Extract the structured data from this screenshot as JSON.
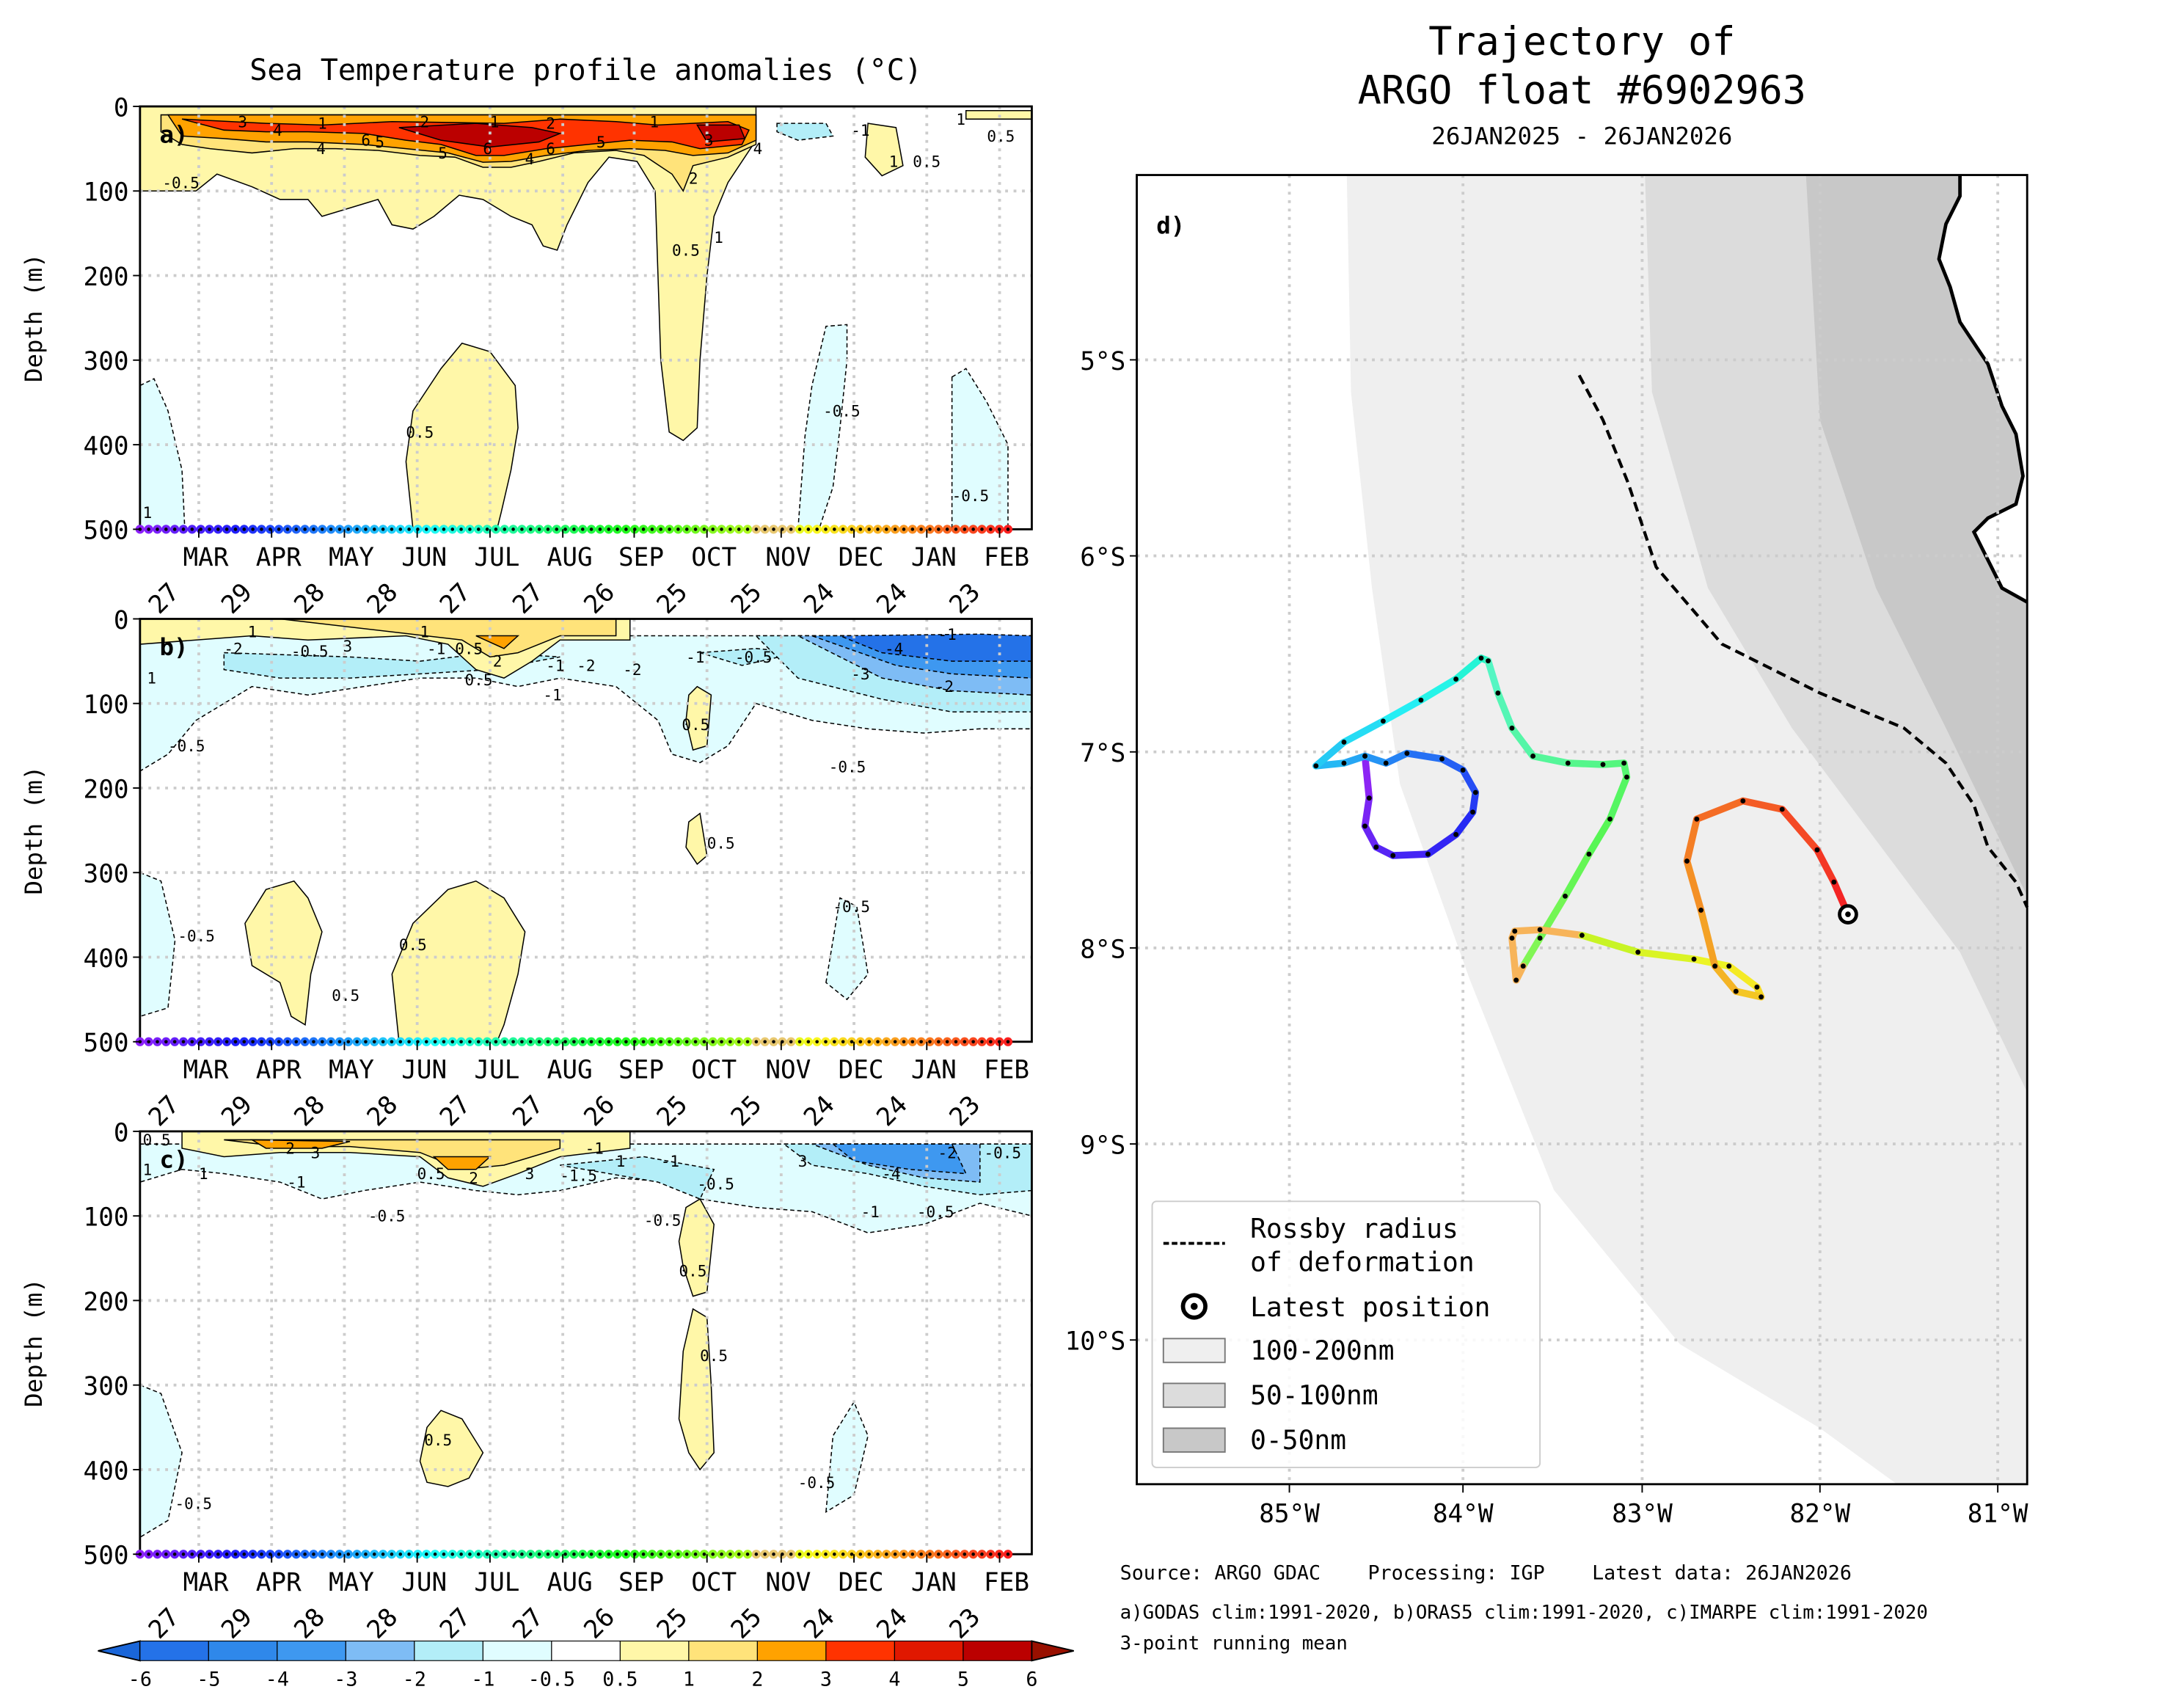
{
  "left_title": "Sea Temperature profile anomalies (°C)",
  "depth_label": "Depth (m)",
  "depth_ticks": [
    "0",
    "100",
    "200",
    "300",
    "400",
    "500"
  ],
  "months": [
    "MAR",
    "APR",
    "MAY",
    "JUN",
    "JUL",
    "AUG",
    "SEP",
    "OCT",
    "NOV",
    "DEC",
    "JAN",
    "FEB"
  ],
  "days": [
    "27",
    "29",
    "28",
    "28",
    "27",
    "27",
    "26",
    "25",
    "25",
    "24",
    "24",
    "23"
  ],
  "panels": [
    {
      "tag": "a)",
      "contour_labels": [
        "3",
        "4",
        "1",
        "4",
        "6",
        "5",
        "2",
        "5",
        "6",
        "1",
        "2",
        "6",
        "4",
        "1",
        "5",
        "3",
        "4",
        "2",
        "1",
        "0.5",
        "-1",
        "1",
        "0.5",
        "-0.5",
        "0.5",
        "-0.5",
        "1",
        "-0.5",
        "1",
        "0.5"
      ]
    },
    {
      "tag": "b)",
      "contour_labels": [
        "1",
        "-2",
        "-0.5",
        "3",
        "1",
        "-1",
        "0.5",
        "2",
        "-1",
        "-2",
        "-2",
        "-1",
        "-0.5",
        "-4",
        "-3",
        "-2",
        "-1",
        "1",
        "-0.5",
        "0.5",
        "0.5",
        "-0.5",
        "0.5",
        "-0.5",
        "0.5",
        "0.5",
        "-0.5",
        "-1"
      ]
    },
    {
      "tag": "c)",
      "contour_labels": [
        "0.5",
        "1",
        "1",
        "2",
        "3",
        "-1",
        "0.5",
        "2",
        "3",
        "-1",
        "-1.5",
        "1",
        "-1",
        "-0.5",
        "3",
        "-4",
        "-2",
        "-0.5",
        "-1",
        "-0.5",
        "-0.5",
        "-0.5",
        "0.5",
        "0.5",
        "0.5",
        "-0.5",
        "-0.5"
      ]
    }
  ],
  "colorbar": {
    "labels": [
      "-6",
      "-5",
      "-4",
      "-3",
      "-2",
      "-1",
      "-0.5",
      "0.5",
      "1",
      "2",
      "3",
      "4",
      "5",
      "6"
    ],
    "colors": [
      "#1a66d9",
      "#2472e8",
      "#2f88ea",
      "#3e98f0",
      "#7ebcf5",
      "#b3eef8",
      "#e0fdff",
      "#ffffff",
      "#fff7a8",
      "#ffe37a",
      "#ffa200",
      "#ff3300",
      "#e01800",
      "#bb0000",
      "#991000"
    ]
  },
  "map": {
    "title_line1": "Trajectory of",
    "title_line2": "ARGO float #6902963",
    "date_range": "26JAN2025 - 26JAN2026",
    "panel_tag": "d)",
    "lat_labels": [
      "5°S",
      "6°S",
      "7°S",
      "8°S",
      "9°S",
      "10°S"
    ],
    "lon_labels": [
      "85°W",
      "84°W",
      "83°W",
      "82°W",
      "81°W"
    ],
    "shade_colors": {
      "far": "#efefef",
      "mid": "#dcdcdc",
      "near": "#c8c8c8"
    },
    "legend": [
      {
        "label": "Rossby radius\nof deformation",
        "line1": "Rossby radius",
        "line2": "of deformation"
      },
      {
        "label": "Latest position"
      },
      {
        "label": "100-200nm"
      },
      {
        "label": "50-100nm"
      },
      {
        "label": "0-50nm"
      }
    ]
  },
  "footer": {
    "source": "Source: ARGO GDAC",
    "processing": "Processing: IGP",
    "latest": "Latest data: 26JAN2026",
    "clims": "a)GODAS clim:1991-2020, b)ORAS5 clim:1991-2020, c)IMARPE clim:1991-2020",
    "note": "3-point running mean"
  },
  "chart_data": [
    {
      "type": "heatmap",
      "title": "Sea Temperature profile anomalies (°C)",
      "panel": "a) GODAS",
      "ylabel": "Depth (m)",
      "ylim": [
        500,
        0
      ],
      "x": "Jan 2025 - Feb 2026 (monthly ticks)"
    },
    {
      "type": "heatmap",
      "panel": "b) ORAS5",
      "ylabel": "Depth (m)",
      "ylim": [
        500,
        0
      ]
    },
    {
      "type": "heatmap",
      "panel": "c) IMARPE",
      "ylabel": "Depth (m)",
      "ylim": [
        500,
        0
      ]
    },
    {
      "type": "line",
      "title": "Trajectory of ARGO float #6902963",
      "xlim": [
        "85.7°W",
        "80.8°W"
      ],
      "ylim": [
        "4.1°S",
        "10.7°S"
      ],
      "latest_position": {
        "lon": -81.85,
        "lat": -7.85
      }
    }
  ]
}
